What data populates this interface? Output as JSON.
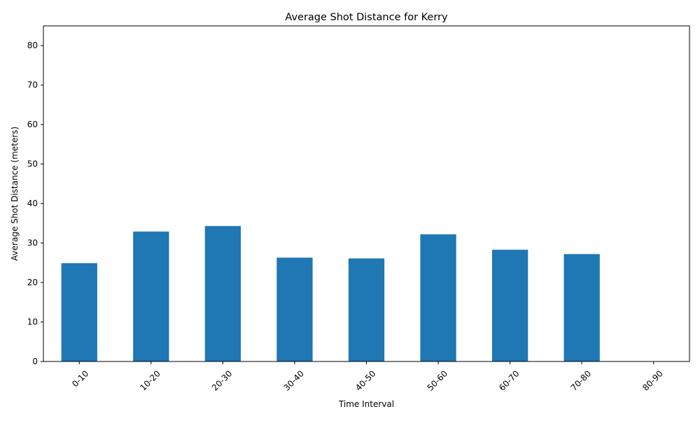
{
  "chart_data": {
    "type": "bar",
    "title": "Average Shot Distance for Kerry",
    "xlabel": "Time Interval",
    "ylabel": "Average Shot Distance (meters)",
    "categories": [
      "0-10",
      "10-20",
      "20-30",
      "30-40",
      "40-50",
      "50-60",
      "60-70",
      "70-80",
      "80-90"
    ],
    "values": [
      24.9,
      32.9,
      34.3,
      26.3,
      26.1,
      32.2,
      28.3,
      27.2,
      0
    ],
    "ylim": [
      0,
      85
    ],
    "yticks": [
      0,
      10,
      20,
      30,
      40,
      50,
      60,
      70,
      80
    ],
    "grid": false,
    "bar_color": "#1f77b4"
  }
}
